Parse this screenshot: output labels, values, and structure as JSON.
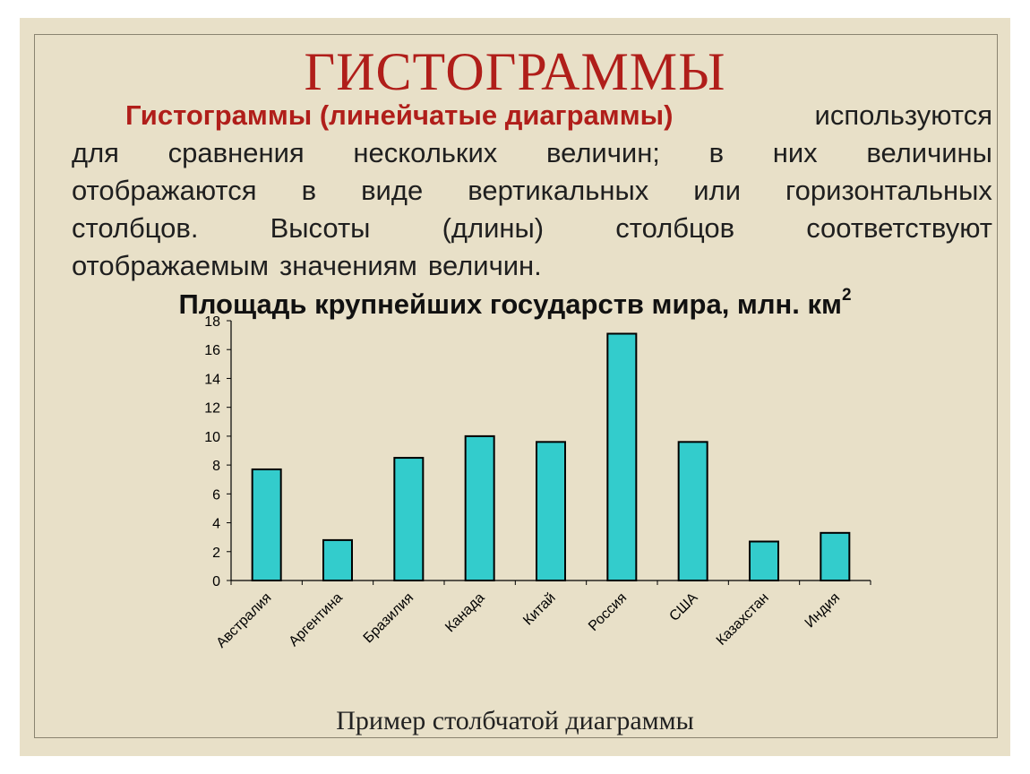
{
  "slide": {
    "title": "ГИСТОГРАММЫ",
    "paragraph_lines": [
      [
        "Гистограммы (линейчатые диаграммы)",
        "используются"
      ],
      [
        "для",
        "сравнения",
        "нескольких",
        "величин;",
        "в",
        "них",
        "величины"
      ],
      [
        "отображаются",
        "в",
        "виде",
        "вертикальных",
        "или",
        "горизонтальных"
      ],
      [
        "столбцов.",
        "Высоты",
        "(длины)",
        "столбцов",
        "соответствуют"
      ],
      [
        "отображаемым",
        "значениям",
        "величин."
      ]
    ],
    "caption": "Пример столбчатой диаграммы"
  },
  "colors": {
    "background": "#e8e0c8",
    "title": "#b01e1a",
    "bar_fill": "#33cccc",
    "bar_stroke": "#000000"
  },
  "chart_data": {
    "type": "bar",
    "title": "Площадь крупнейших государств мира, млн. км",
    "title_superscript": "2",
    "categories": [
      "Австралия",
      "Аргентина",
      "Бразилия",
      "Канада",
      "Китай",
      "Россия",
      "США",
      "Казахстан",
      "Индия"
    ],
    "values": [
      7.7,
      2.8,
      8.5,
      10.0,
      9.6,
      17.1,
      9.6,
      2.7,
      3.3
    ],
    "ylim": [
      0,
      18
    ],
    "yticks": [
      0,
      2,
      4,
      6,
      8,
      10,
      12,
      14,
      16,
      18
    ],
    "grid": false,
    "legend": "none"
  }
}
